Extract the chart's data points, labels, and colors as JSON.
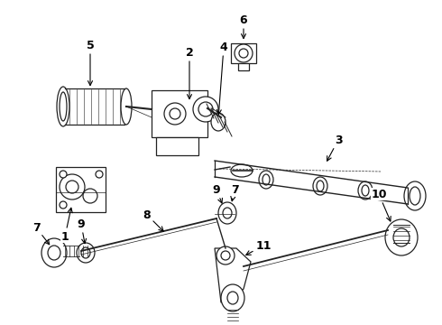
{
  "bg_color": "#ffffff",
  "line_color": "#222222",
  "figsize": [
    4.9,
    3.6
  ],
  "dpi": 100,
  "labels": {
    "1": [
      0.135,
      0.555,
      0.155,
      0.5
    ],
    "2": [
      0.31,
      0.24,
      0.3,
      0.39
    ],
    "3": [
      0.72,
      0.31,
      0.67,
      0.36
    ],
    "4": [
      0.43,
      0.175,
      0.41,
      0.28
    ],
    "5": [
      0.145,
      0.155,
      0.12,
      0.31
    ],
    "6": [
      0.56,
      0.065,
      0.56,
      0.135
    ],
    "7a": [
      0.072,
      0.64,
      0.115,
      0.655
    ],
    "7b": [
      0.468,
      0.535,
      0.49,
      0.51
    ],
    "8": [
      0.285,
      0.58,
      0.33,
      0.57
    ],
    "9a": [
      0.163,
      0.62,
      0.185,
      0.628
    ],
    "9b": [
      0.452,
      0.508,
      0.472,
      0.5
    ],
    "10": [
      0.835,
      0.625,
      0.87,
      0.64
    ],
    "11": [
      0.495,
      0.748,
      0.5,
      0.735
    ]
  }
}
